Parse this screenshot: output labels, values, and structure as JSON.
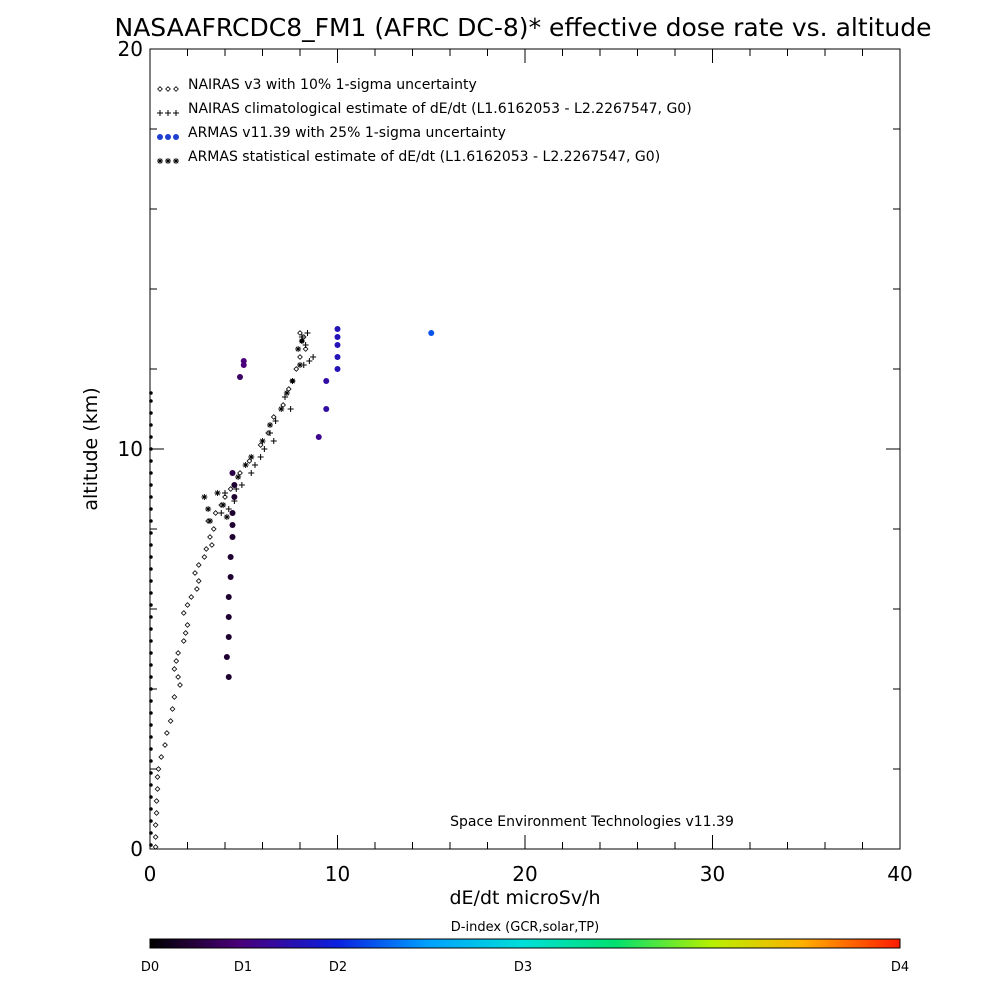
{
  "chart_data": {
    "type": "scatter",
    "title": "NASAAFRCDC8_FM1 (AFRC DC-8)* effective dose rate vs. altitude",
    "xlabel": "dE/dt microSv/h",
    "ylabel": "altitude (km)",
    "xlim": [
      0,
      40
    ],
    "ylim": [
      0,
      20
    ],
    "x_ticks": [
      0,
      10,
      20,
      30,
      40
    ],
    "y_ticks": [
      0,
      10,
      20
    ],
    "legend_position": "top-left",
    "credit": "Space Environment Technologies v11.39",
    "colorbar": {
      "title": "D-index (GCR,solar,TP)",
      "labels": [
        {
          "text": "D0",
          "value": 0
        },
        {
          "text": "D1",
          "value": 1
        },
        {
          "text": "D2",
          "value": 2
        },
        {
          "text": "D3",
          "value": 3
        },
        {
          "text": "D4",
          "value": 4
        }
      ]
    },
    "series": [
      {
        "name": "NAIRAS v3 with 10% 1-sigma uncertainty",
        "marker": "diamond",
        "points": [
          [
            0.3,
            0.05
          ],
          [
            0.3,
            0.3
          ],
          [
            0.3,
            0.6
          ],
          [
            0.35,
            0.9
          ],
          [
            0.35,
            1.2
          ],
          [
            0.4,
            1.5
          ],
          [
            0.4,
            1.8
          ],
          [
            0.45,
            2.0
          ],
          [
            0.6,
            2.3
          ],
          [
            0.8,
            2.6
          ],
          [
            0.9,
            2.9
          ],
          [
            1.1,
            3.2
          ],
          [
            1.2,
            3.5
          ],
          [
            1.3,
            3.8
          ],
          [
            1.6,
            4.1
          ],
          [
            1.5,
            4.3
          ],
          [
            1.3,
            4.5
          ],
          [
            1.4,
            4.7
          ],
          [
            1.5,
            4.9
          ],
          [
            1.8,
            5.2
          ],
          [
            1.9,
            5.4
          ],
          [
            2.0,
            5.6
          ],
          [
            1.8,
            5.9
          ],
          [
            2.0,
            6.1
          ],
          [
            2.2,
            6.3
          ],
          [
            2.5,
            6.5
          ],
          [
            2.6,
            6.7
          ],
          [
            2.4,
            6.9
          ],
          [
            2.6,
            7.1
          ],
          [
            2.9,
            7.3
          ],
          [
            3.0,
            7.5
          ],
          [
            3.3,
            7.6
          ],
          [
            3.2,
            7.8
          ],
          [
            3.4,
            8.0
          ],
          [
            3.1,
            8.2
          ],
          [
            3.5,
            8.4
          ],
          [
            3.8,
            8.6
          ],
          [
            4.0,
            8.8
          ],
          [
            4.3,
            9.0
          ],
          [
            4.8,
            9.4
          ],
          [
            5.3,
            9.7
          ],
          [
            5.9,
            10.1
          ],
          [
            6.3,
            10.4
          ],
          [
            6.6,
            10.8
          ],
          [
            7.1,
            11.1
          ],
          [
            7.4,
            11.5
          ],
          [
            7.6,
            11.7
          ],
          [
            7.8,
            12.0
          ],
          [
            8.0,
            12.3
          ],
          [
            8.3,
            12.5
          ],
          [
            8.1,
            12.7
          ],
          [
            8.0,
            12.9
          ],
          [
            8.2,
            12.8
          ]
        ]
      },
      {
        "name": "NAIRAS climatological estimate of dE/dt (L1.6162053 - L2.2267547, G0)",
        "marker": "plus",
        "points": [
          [
            3.8,
            8.4
          ],
          [
            4.2,
            8.5
          ],
          [
            4.5,
            8.7
          ],
          [
            4.0,
            8.9
          ],
          [
            4.6,
            9.0
          ],
          [
            4.9,
            9.1
          ],
          [
            5.4,
            9.4
          ],
          [
            5.6,
            9.6
          ],
          [
            5.9,
            9.8
          ],
          [
            6.1,
            10.0
          ],
          [
            6.6,
            10.2
          ],
          [
            6.4,
            10.4
          ],
          [
            6.7,
            10.7
          ],
          [
            7.5,
            11.0
          ],
          [
            7.2,
            11.3
          ],
          [
            8.2,
            12.1
          ],
          [
            8.5,
            12.2
          ],
          [
            8.7,
            12.3
          ],
          [
            8.3,
            12.6
          ],
          [
            8.1,
            12.8
          ],
          [
            8.4,
            12.9
          ]
        ]
      },
      {
        "name": "ARMAS v11.39 with 25% 1-sigma uncertainty",
        "marker": "dot",
        "color": "#1f3fd0",
        "points": [
          [
            4.2,
            4.3,
            0.2
          ],
          [
            4.1,
            4.8,
            0.2
          ],
          [
            4.2,
            5.3,
            0.2
          ],
          [
            4.2,
            5.8,
            0.2
          ],
          [
            4.2,
            6.3,
            0.2
          ],
          [
            4.3,
            6.8,
            0.2
          ],
          [
            4.3,
            7.3,
            0.2
          ],
          [
            4.4,
            7.8,
            0.2
          ],
          [
            4.4,
            8.1,
            0.2
          ],
          [
            4.4,
            8.4,
            0.2
          ],
          [
            4.5,
            8.8,
            0.2
          ],
          [
            4.5,
            9.1,
            0.2
          ],
          [
            4.4,
            9.4,
            0.3
          ],
          [
            4.8,
            11.8,
            0.4
          ],
          [
            5.0,
            12.1,
            0.5
          ],
          [
            5.0,
            12.2,
            0.5
          ],
          [
            9.0,
            10.3,
            0.6
          ],
          [
            9.4,
            11.0,
            0.7
          ],
          [
            9.4,
            11.7,
            0.7
          ],
          [
            10.0,
            12.0,
            0.8
          ],
          [
            10.0,
            12.3,
            0.8
          ],
          [
            10.0,
            12.6,
            0.8
          ],
          [
            10.0,
            12.8,
            0.8
          ],
          [
            10.0,
            13.0,
            0.8
          ],
          [
            15.0,
            12.9,
            1.2
          ]
        ]
      },
      {
        "name": "ARMAS statistical estimate of dE/dt (L1.6162053 - L2.2267547, G0)",
        "marker": "asterisk",
        "points": [
          [
            2.9,
            8.8
          ],
          [
            3.1,
            8.5
          ],
          [
            3.2,
            8.2
          ],
          [
            3.6,
            8.9
          ],
          [
            3.9,
            8.6
          ],
          [
            4.1,
            8.3
          ],
          [
            4.7,
            9.3
          ],
          [
            5.1,
            9.6
          ],
          [
            5.4,
            9.8
          ],
          [
            6.0,
            10.2
          ],
          [
            6.4,
            10.6
          ],
          [
            7.0,
            11.0
          ],
          [
            7.3,
            11.4
          ],
          [
            7.6,
            11.7
          ],
          [
            8.0,
            12.1
          ],
          [
            7.9,
            12.5
          ],
          [
            8.1,
            12.7
          ]
        ]
      },
      {
        "name": "",
        "marker": "dot-small",
        "points": [
          [
            0.05,
            0.1
          ],
          [
            0.05,
            0.4
          ],
          [
            0.05,
            0.7
          ],
          [
            0.05,
            1.0
          ],
          [
            0.05,
            1.3
          ],
          [
            0.05,
            1.6
          ],
          [
            0.05,
            1.9
          ],
          [
            0.05,
            2.2
          ],
          [
            0.05,
            2.5
          ],
          [
            0.05,
            2.8
          ],
          [
            0.05,
            3.1
          ],
          [
            0.05,
            3.4
          ],
          [
            0.05,
            3.7
          ],
          [
            0.05,
            4.0
          ],
          [
            0.05,
            4.3
          ],
          [
            0.05,
            4.6
          ],
          [
            0.05,
            4.9
          ],
          [
            0.05,
            5.2
          ],
          [
            0.05,
            5.5
          ],
          [
            0.05,
            5.8
          ],
          [
            0.05,
            6.1
          ],
          [
            0.05,
            6.4
          ],
          [
            0.05,
            6.7
          ],
          [
            0.05,
            7.0
          ],
          [
            0.05,
            7.3
          ],
          [
            0.05,
            7.6
          ],
          [
            0.05,
            7.9
          ],
          [
            0.05,
            8.2
          ],
          [
            0.05,
            8.5
          ],
          [
            0.05,
            8.8
          ],
          [
            0.05,
            9.1
          ],
          [
            0.05,
            9.4
          ],
          [
            0.05,
            9.7
          ],
          [
            0.05,
            10.0
          ],
          [
            0.05,
            10.3
          ],
          [
            0.05,
            10.6
          ],
          [
            0.05,
            10.9
          ],
          [
            0.05,
            11.2
          ],
          [
            0.05,
            11.4
          ]
        ]
      }
    ]
  }
}
